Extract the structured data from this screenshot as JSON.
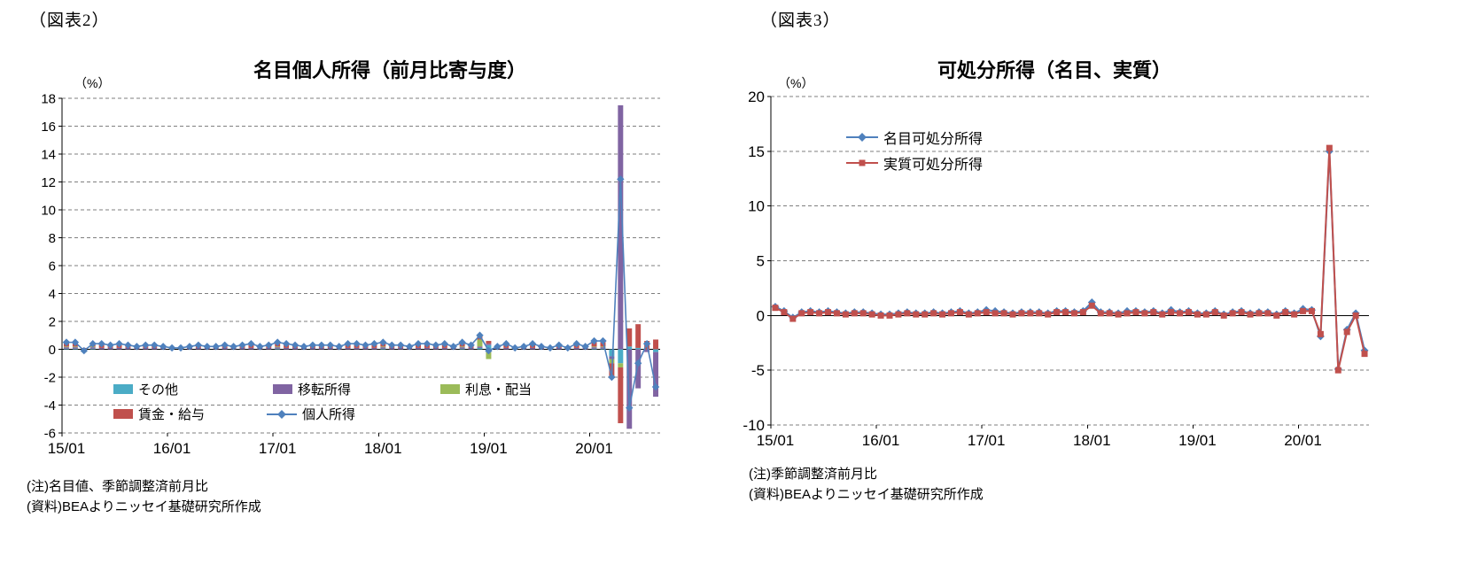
{
  "figure2": {
    "tag": "（図表2）",
    "notes": [
      "(注)名目値、季節調整済前月比",
      "(資料)BEAよりニッセイ基礎研究所作成"
    ]
  },
  "figure3": {
    "tag": "（図表3）",
    "notes": [
      "(注)季節調整済前月比",
      "(資料)BEAよりニッセイ基礎研究所作成"
    ]
  },
  "chart_data": [
    {
      "type": "bar",
      "stacked": true,
      "title": "名目個人所得（前月比寄与度）",
      "ylabel": "（%）",
      "ylim": [
        -6,
        18
      ],
      "ytick_step": 2,
      "grid": "dashed-horizontal",
      "legend_position": "bottom-inside",
      "xtick_every": 12,
      "xtick_labels": [
        "15/01",
        "16/01",
        "17/01",
        "18/01",
        "19/01",
        "20/01"
      ],
      "x": [
        "15/01",
        "15/02",
        "15/03",
        "15/04",
        "15/05",
        "15/06",
        "15/07",
        "15/08",
        "15/09",
        "15/10",
        "15/11",
        "15/12",
        "16/01",
        "16/02",
        "16/03",
        "16/04",
        "16/05",
        "16/06",
        "16/07",
        "16/08",
        "16/09",
        "16/10",
        "16/11",
        "16/12",
        "17/01",
        "17/02",
        "17/03",
        "17/04",
        "17/05",
        "17/06",
        "17/07",
        "17/08",
        "17/09",
        "17/10",
        "17/11",
        "17/12",
        "18/01",
        "18/02",
        "18/03",
        "18/04",
        "18/05",
        "18/06",
        "18/07",
        "18/08",
        "18/09",
        "18/10",
        "18/11",
        "18/12",
        "19/01",
        "19/02",
        "19/03",
        "19/04",
        "19/05",
        "19/06",
        "19/07",
        "19/08",
        "19/09",
        "19/10",
        "19/11",
        "19/12",
        "20/01",
        "20/02",
        "20/03",
        "20/04",
        "20/05",
        "20/06",
        "20/07",
        "20/08"
      ],
      "bar_series": [
        {
          "name": "その他",
          "color": "#4bacc6",
          "values": [
            0.05,
            0.05,
            -0.1,
            0.05,
            0,
            0,
            0,
            0,
            0,
            0,
            0,
            0,
            0,
            0,
            0,
            0,
            0,
            0,
            0,
            0,
            0,
            0,
            0,
            0,
            0.05,
            0,
            0,
            0,
            0,
            0,
            0,
            0,
            0,
            0,
            0,
            0,
            0.05,
            0,
            0,
            0,
            0,
            0,
            0,
            0,
            0,
            0.05,
            0,
            0.1,
            0.3,
            0,
            0,
            0,
            0,
            0,
            0,
            0,
            0,
            0,
            0,
            0,
            0.05,
            0.05,
            -0.5,
            -1.0,
            0.2,
            0.1,
            0,
            -0.2
          ]
        },
        {
          "name": "移転所得",
          "color": "#8064a2",
          "values": [
            0.1,
            0.1,
            0,
            0.1,
            0.1,
            0.1,
            0.1,
            0.1,
            0.1,
            0.1,
            0.1,
            0.1,
            0,
            0,
            0.1,
            0.1,
            0.1,
            0.1,
            0.1,
            0.1,
            0.1,
            0.1,
            0.1,
            0.1,
            0.1,
            0.1,
            0.1,
            0.1,
            0.1,
            0.1,
            0.1,
            0.1,
            0.1,
            0.1,
            0.1,
            0.1,
            0.1,
            0.1,
            0.1,
            0.1,
            0.1,
            0.1,
            0.1,
            0.1,
            0.1,
            0.1,
            0.1,
            0.1,
            0.1,
            0.1,
            0.1,
            0,
            0.1,
            0.1,
            0.1,
            0,
            0.1,
            0,
            0.1,
            0.1,
            0.1,
            0.1,
            -0.2,
            17.5,
            -5.7,
            -2.8,
            -0.2,
            -3.2
          ]
        },
        {
          "name": "利息・配当",
          "color": "#9bbb59",
          "values": [
            0.05,
            0.05,
            -0.1,
            0.05,
            0,
            0,
            0,
            0,
            0,
            0,
            0,
            0,
            0,
            0,
            0,
            0,
            0,
            0,
            0,
            0,
            0,
            0,
            0,
            0,
            0.05,
            0,
            0,
            0,
            0,
            0,
            0,
            0,
            0,
            0,
            0,
            0,
            0.05,
            0,
            0,
            0,
            0,
            0,
            0,
            0,
            0,
            0.05,
            0,
            0.5,
            -0.7,
            0,
            0,
            0,
            0,
            0,
            0,
            0,
            0,
            0,
            0,
            0,
            0.05,
            0.05,
            -0.3,
            -0.3,
            0,
            0,
            0,
            0
          ]
        },
        {
          "name": "賃金・給与",
          "color": "#c0504d",
          "values": [
            0.3,
            0.3,
            0.1,
            0.2,
            0.3,
            0.2,
            0.3,
            0.2,
            0.1,
            0.2,
            0.2,
            0.1,
            0.1,
            0.1,
            0.1,
            0.2,
            0.1,
            0.1,
            0.2,
            0.1,
            0.2,
            0.3,
            0.1,
            0.2,
            0.3,
            0.3,
            0.2,
            0.1,
            0.2,
            0.2,
            0.2,
            0.1,
            0.3,
            0.3,
            0.2,
            0.3,
            0.3,
            0.2,
            0.2,
            0.1,
            0.3,
            0.3,
            0.2,
            0.3,
            0.1,
            0.3,
            0.2,
            0.3,
            0.2,
            0.1,
            0.3,
            0.1,
            0.1,
            0.3,
            0.1,
            0.1,
            0.2,
            0.1,
            0.3,
            0.1,
            0.4,
            0.4,
            -1.0,
            -4.0,
            1.3,
            1.7,
            0.6,
            0.7
          ]
        }
      ],
      "line_series": [
        {
          "name": "個人所得",
          "color": "#4f81bd",
          "marker": "diamond",
          "values": [
            0.5,
            0.5,
            -0.1,
            0.4,
            0.4,
            0.3,
            0.4,
            0.3,
            0.2,
            0.3,
            0.3,
            0.2,
            0.1,
            0.1,
            0.2,
            0.3,
            0.2,
            0.2,
            0.3,
            0.2,
            0.3,
            0.4,
            0.2,
            0.3,
            0.5,
            0.4,
            0.3,
            0.2,
            0.3,
            0.3,
            0.3,
            0.2,
            0.4,
            0.4,
            0.3,
            0.4,
            0.5,
            0.3,
            0.3,
            0.2,
            0.4,
            0.4,
            0.3,
            0.4,
            0.2,
            0.5,
            0.3,
            1.0,
            -0.1,
            0.2,
            0.4,
            0.1,
            0.2,
            0.4,
            0.2,
            0.1,
            0.3,
            0.1,
            0.4,
            0.2,
            0.6,
            0.6,
            -2.0,
            12.2,
            -4.2,
            -1.0,
            0.4,
            -2.7
          ]
        }
      ]
    },
    {
      "type": "line",
      "title": "可処分所得（名目、実質）",
      "ylabel": "（%）",
      "ylim": [
        -10,
        20
      ],
      "ytick_step": 5,
      "grid": "dashed-horizontal",
      "legend_position": "top-inside",
      "xtick_every": 12,
      "xtick_labels": [
        "15/01",
        "16/01",
        "17/01",
        "18/01",
        "19/01",
        "20/01"
      ],
      "x": [
        "15/01",
        "15/02",
        "15/03",
        "15/04",
        "15/05",
        "15/06",
        "15/07",
        "15/08",
        "15/09",
        "15/10",
        "15/11",
        "15/12",
        "16/01",
        "16/02",
        "16/03",
        "16/04",
        "16/05",
        "16/06",
        "16/07",
        "16/08",
        "16/09",
        "16/10",
        "16/11",
        "16/12",
        "17/01",
        "17/02",
        "17/03",
        "17/04",
        "17/05",
        "17/06",
        "17/07",
        "17/08",
        "17/09",
        "17/10",
        "17/11",
        "17/12",
        "18/01",
        "18/02",
        "18/03",
        "18/04",
        "18/05",
        "18/06",
        "18/07",
        "18/08",
        "18/09",
        "18/10",
        "18/11",
        "18/12",
        "19/01",
        "19/02",
        "19/03",
        "19/04",
        "19/05",
        "19/06",
        "19/07",
        "19/08",
        "19/09",
        "19/10",
        "19/11",
        "19/12",
        "20/01",
        "20/02",
        "20/03",
        "20/04",
        "20/05",
        "20/06",
        "20/07",
        "20/08"
      ],
      "series": [
        {
          "name": "名目可処分所得",
          "color": "#4f81bd",
          "marker": "diamond",
          "values": [
            0.8,
            0.4,
            -0.2,
            0.3,
            0.4,
            0.3,
            0.4,
            0.3,
            0.2,
            0.3,
            0.3,
            0.2,
            0.1,
            0.1,
            0.2,
            0.3,
            0.2,
            0.2,
            0.3,
            0.2,
            0.3,
            0.4,
            0.2,
            0.3,
            0.5,
            0.4,
            0.3,
            0.2,
            0.3,
            0.3,
            0.3,
            0.2,
            0.4,
            0.4,
            0.3,
            0.4,
            1.2,
            0.3,
            0.3,
            0.2,
            0.4,
            0.4,
            0.3,
            0.4,
            0.2,
            0.5,
            0.3,
            0.4,
            0.2,
            0.2,
            0.4,
            0.1,
            0.3,
            0.4,
            0.2,
            0.3,
            0.3,
            0.1,
            0.4,
            0.2,
            0.6,
            0.5,
            -1.9,
            15.0,
            -4.9,
            -1.3,
            0.2,
            -3.2
          ]
        },
        {
          "name": "実質可処分所得",
          "color": "#c0504d",
          "marker": "square",
          "values": [
            0.7,
            0.3,
            -0.3,
            0.2,
            0.3,
            0.2,
            0.3,
            0.2,
            0.1,
            0.2,
            0.2,
            0.1,
            0.0,
            0.0,
            0.1,
            0.2,
            0.1,
            0.1,
            0.2,
            0.1,
            0.2,
            0.3,
            0.1,
            0.2,
            0.3,
            0.2,
            0.2,
            0.1,
            0.2,
            0.2,
            0.2,
            0.1,
            0.3,
            0.3,
            0.2,
            0.3,
            0.9,
            0.2,
            0.2,
            0.1,
            0.2,
            0.3,
            0.2,
            0.3,
            0.1,
            0.3,
            0.2,
            0.3,
            0.1,
            0.1,
            0.3,
            0.0,
            0.2,
            0.3,
            0.1,
            0.2,
            0.2,
            0.0,
            0.3,
            0.1,
            0.4,
            0.4,
            -1.7,
            15.3,
            -5.0,
            -1.5,
            0.0,
            -3.5
          ]
        }
      ]
    }
  ]
}
